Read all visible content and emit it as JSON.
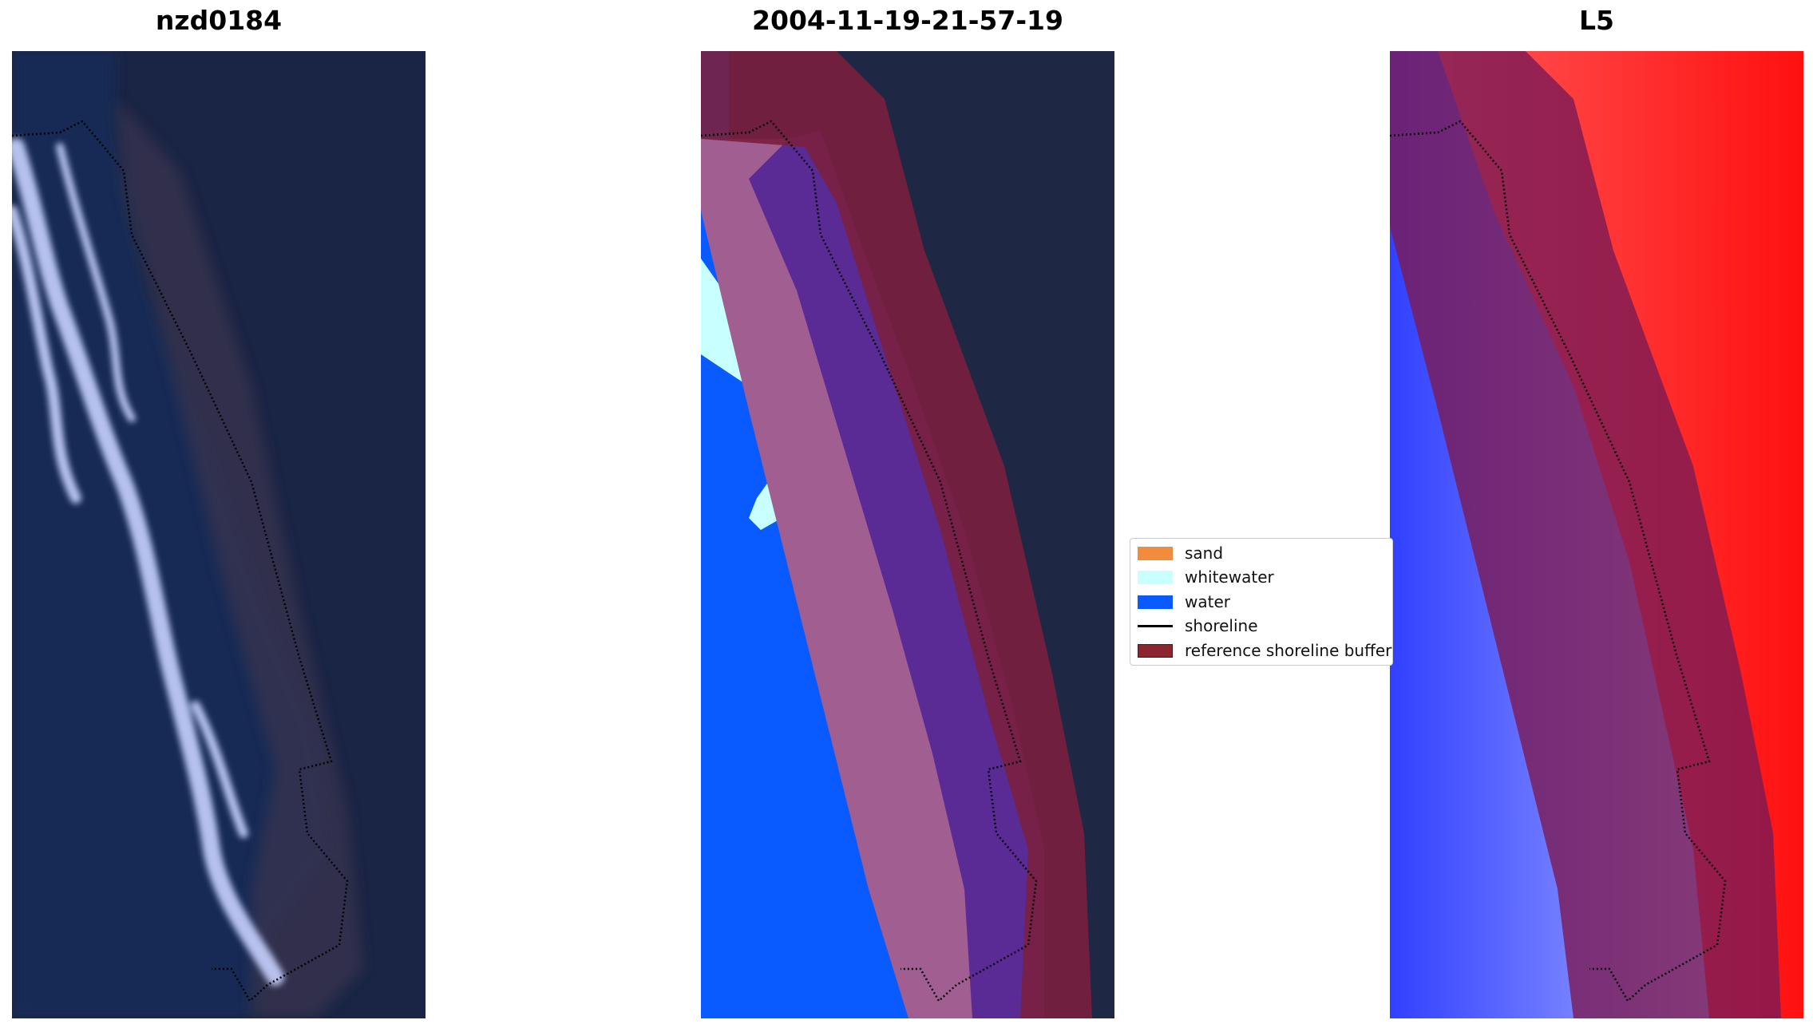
{
  "panels": [
    {
      "title": "nzd0184"
    },
    {
      "title": "2004-11-19-21-57-19"
    },
    {
      "title": "L5"
    }
  ],
  "legend": {
    "items": [
      {
        "label": "sand",
        "color": "#f28c3c",
        "kind": "patch"
      },
      {
        "label": "whitewater",
        "color": "#c8ffff",
        "kind": "patch"
      },
      {
        "label": "water",
        "color": "#0a5bff",
        "kind": "patch"
      },
      {
        "label": "shoreline",
        "color": "#000000",
        "kind": "line"
      },
      {
        "label": "reference shoreline buffer",
        "color": "#8b2530",
        "kind": "patch"
      }
    ]
  },
  "colors": {
    "ocean_dark": "#16264a",
    "land_dark": "#1d2642",
    "surf": "#c8d2ff",
    "buffer": "#7a1f3f",
    "mndwi_water": "#2a36ff",
    "mndwi_land": "#ff1a1a"
  }
}
